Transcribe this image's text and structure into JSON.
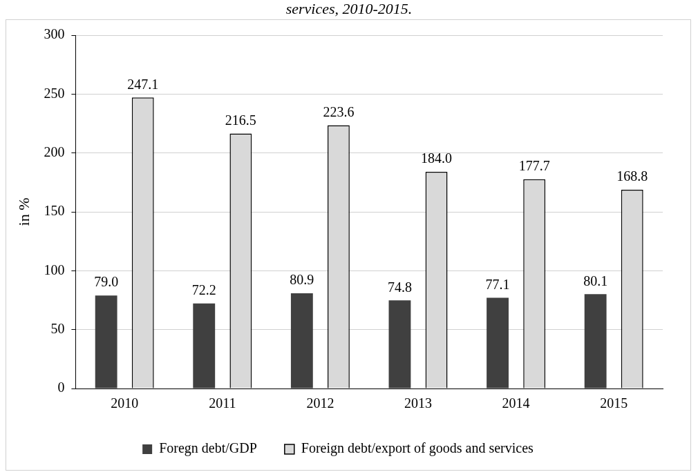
{
  "chart_data": {
    "type": "bar",
    "title": "services, 2010-2015.",
    "ylabel": "in %",
    "categories": [
      "2010",
      "2011",
      "2012",
      "2013",
      "2014",
      "2015"
    ],
    "series": [
      {
        "name": "Foregn debt/GDP",
        "color": "#404040",
        "values": [
          79.0,
          72.2,
          80.9,
          74.8,
          77.1,
          80.1
        ],
        "value_labels": [
          "79.0",
          "72.2",
          "80.9",
          "74.8",
          "77.1",
          "80.1"
        ]
      },
      {
        "name": "Foreign debt/export of goods and services",
        "color": "#d9d9d9",
        "values": [
          247.1,
          216.5,
          223.6,
          184.0,
          177.7,
          168.8
        ],
        "value_labels": [
          "247.1",
          "216.5",
          "223.6",
          "184.0",
          "177.7",
          "168.8"
        ]
      }
    ],
    "ylim": [
      0,
      300
    ],
    "yticks": [
      0,
      50,
      100,
      150,
      200,
      250,
      300
    ],
    "grid": "y",
    "legend": "bottom"
  }
}
